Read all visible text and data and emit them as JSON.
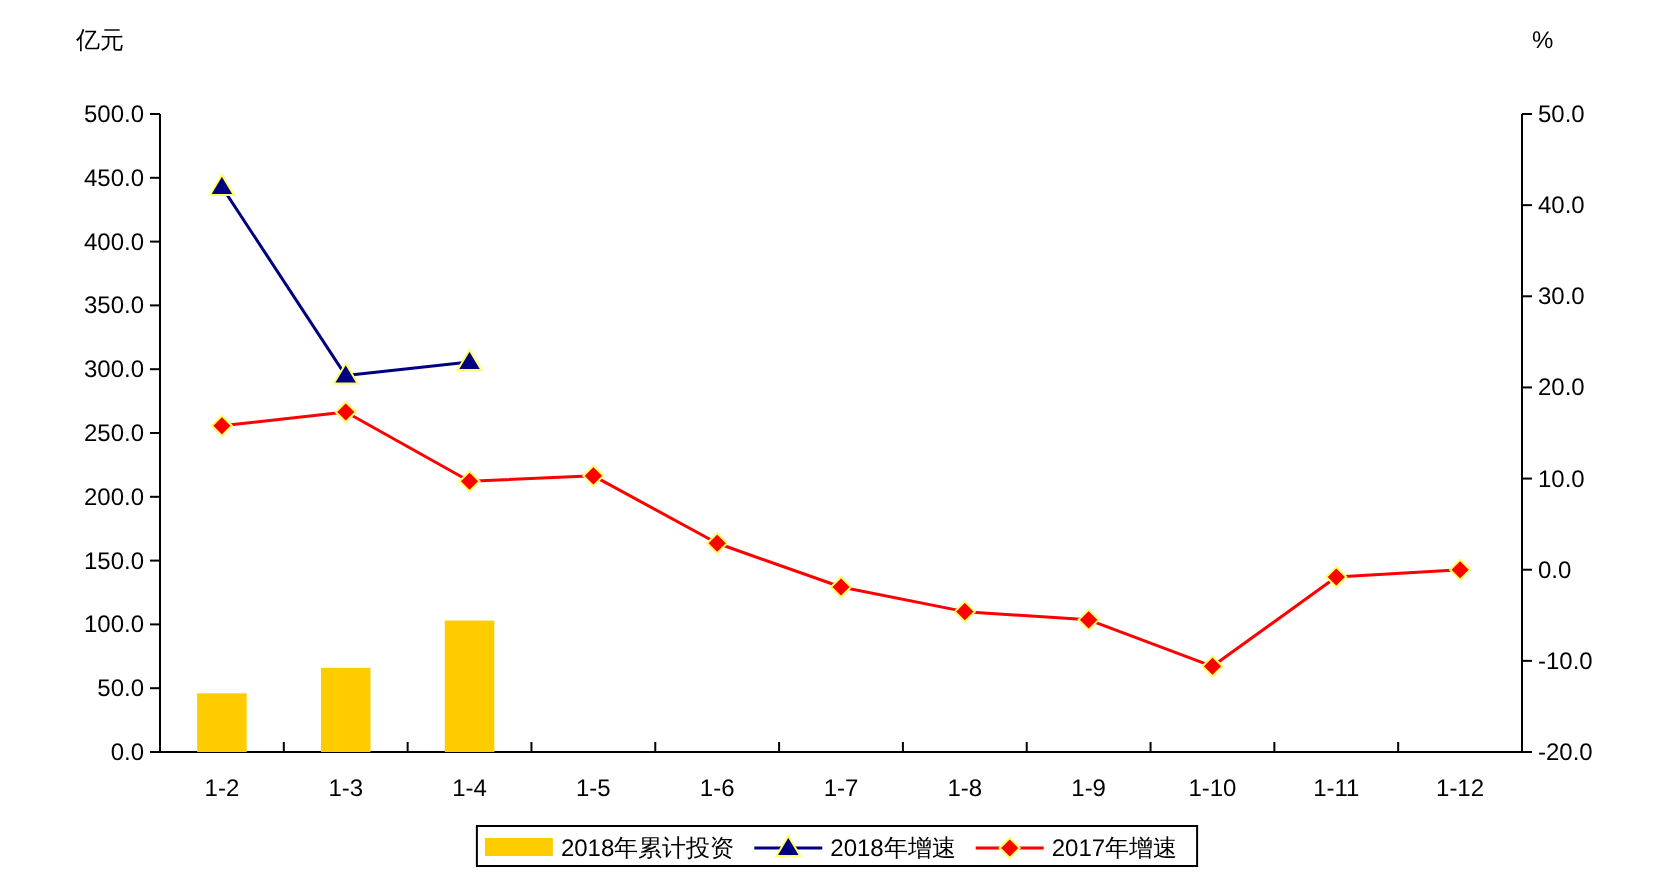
{
  "chart_data": {
    "type": "bar",
    "ylabel": "亿元",
    "y2label": "%",
    "categories": [
      "1-2",
      "1-3",
      "1-4",
      "1-5",
      "1-6",
      "1-7",
      "1-8",
      "1-9",
      "1-10",
      "1-11",
      "1-12"
    ],
    "series": [
      {
        "name": "2018年累计投资",
        "color": "#ffcc00",
        "values": [
          46,
          66,
          103,
          null,
          null,
          null,
          null,
          null,
          null,
          null,
          null
        ]
      },
      {
        "name": "2018年增速",
        "type": "line",
        "axis": "y2",
        "marker": "triangle",
        "color": "#000080",
        "values": [
          42.0,
          21.3,
          22.8,
          null,
          null,
          null,
          null,
          null,
          null,
          null,
          null
        ]
      },
      {
        "name": "2017年增速",
        "type": "line",
        "axis": "y2",
        "marker": "diamond",
        "color": "#ff0000",
        "values": [
          15.8,
          17.3,
          9.7,
          10.3,
          2.9,
          -1.9,
          -4.6,
          -5.5,
          -10.6,
          -0.8,
          0.0
        ]
      }
    ],
    "ylim": [
      0,
      500
    ],
    "yticks": [
      {
        "value": 0,
        "label": "0.0"
      },
      {
        "value": 50,
        "label": "50.0"
      },
      {
        "value": 100,
        "label": "100.0"
      },
      {
        "value": 150,
        "label": "150.0"
      },
      {
        "value": 200,
        "label": "200.0"
      },
      {
        "value": 250,
        "label": "250.0"
      },
      {
        "value": 300,
        "label": "300.0"
      },
      {
        "value": 350,
        "label": "350.0"
      },
      {
        "value": 400,
        "label": "400.0"
      },
      {
        "value": 450,
        "label": "450.0"
      },
      {
        "value": 500,
        "label": "500.0"
      }
    ],
    "y2lim": [
      -20,
      50
    ],
    "y2ticks": [
      {
        "value": -20,
        "label": "-20.0"
      },
      {
        "value": -10,
        "label": "-10.0"
      },
      {
        "value": 0,
        "label": "0.0"
      },
      {
        "value": 10,
        "label": "10.0"
      },
      {
        "value": 20,
        "label": "20.0"
      },
      {
        "value": 30,
        "label": "30.0"
      },
      {
        "value": 40,
        "label": "40.0"
      },
      {
        "value": 50,
        "label": "50.0"
      }
    ],
    "grid": false,
    "legend": "bottom"
  }
}
